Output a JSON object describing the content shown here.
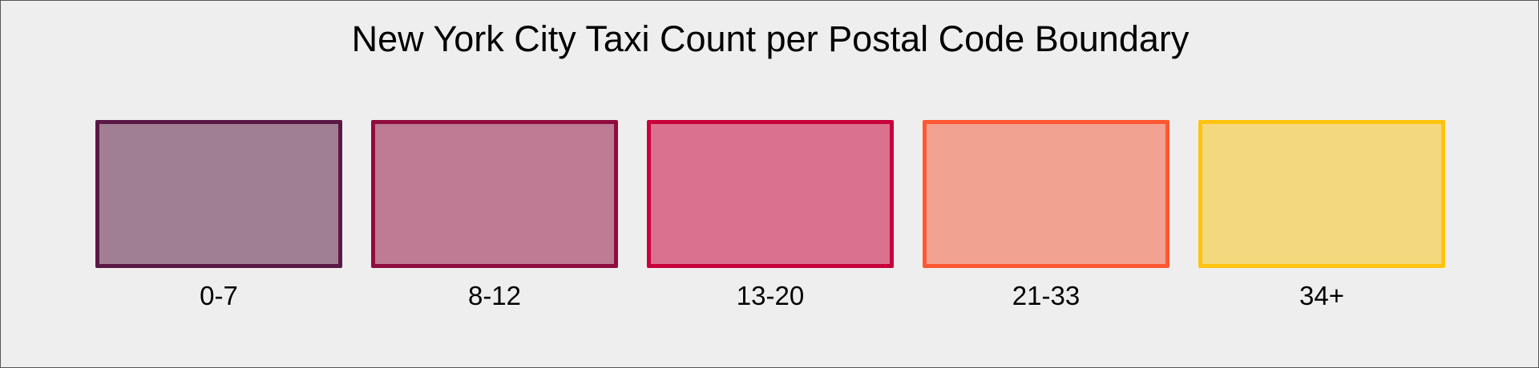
{
  "title": "New York City Taxi Count per Postal Code Boundary",
  "legend": [
    {
      "label": "0-7",
      "stroke": "#5a1846",
      "fill": "#a17f92"
    },
    {
      "label": "8-12",
      "stroke": "#900c3f",
      "fill": "#bd7b94"
    },
    {
      "label": "13-20",
      "stroke": "#c70039",
      "fill": "#d8728f"
    },
    {
      "label": "21-33",
      "stroke": "#ff5733",
      "fill": "#f2a290"
    },
    {
      "label": "34+",
      "stroke": "#ffc30f",
      "fill": "#f3d87e"
    }
  ]
}
